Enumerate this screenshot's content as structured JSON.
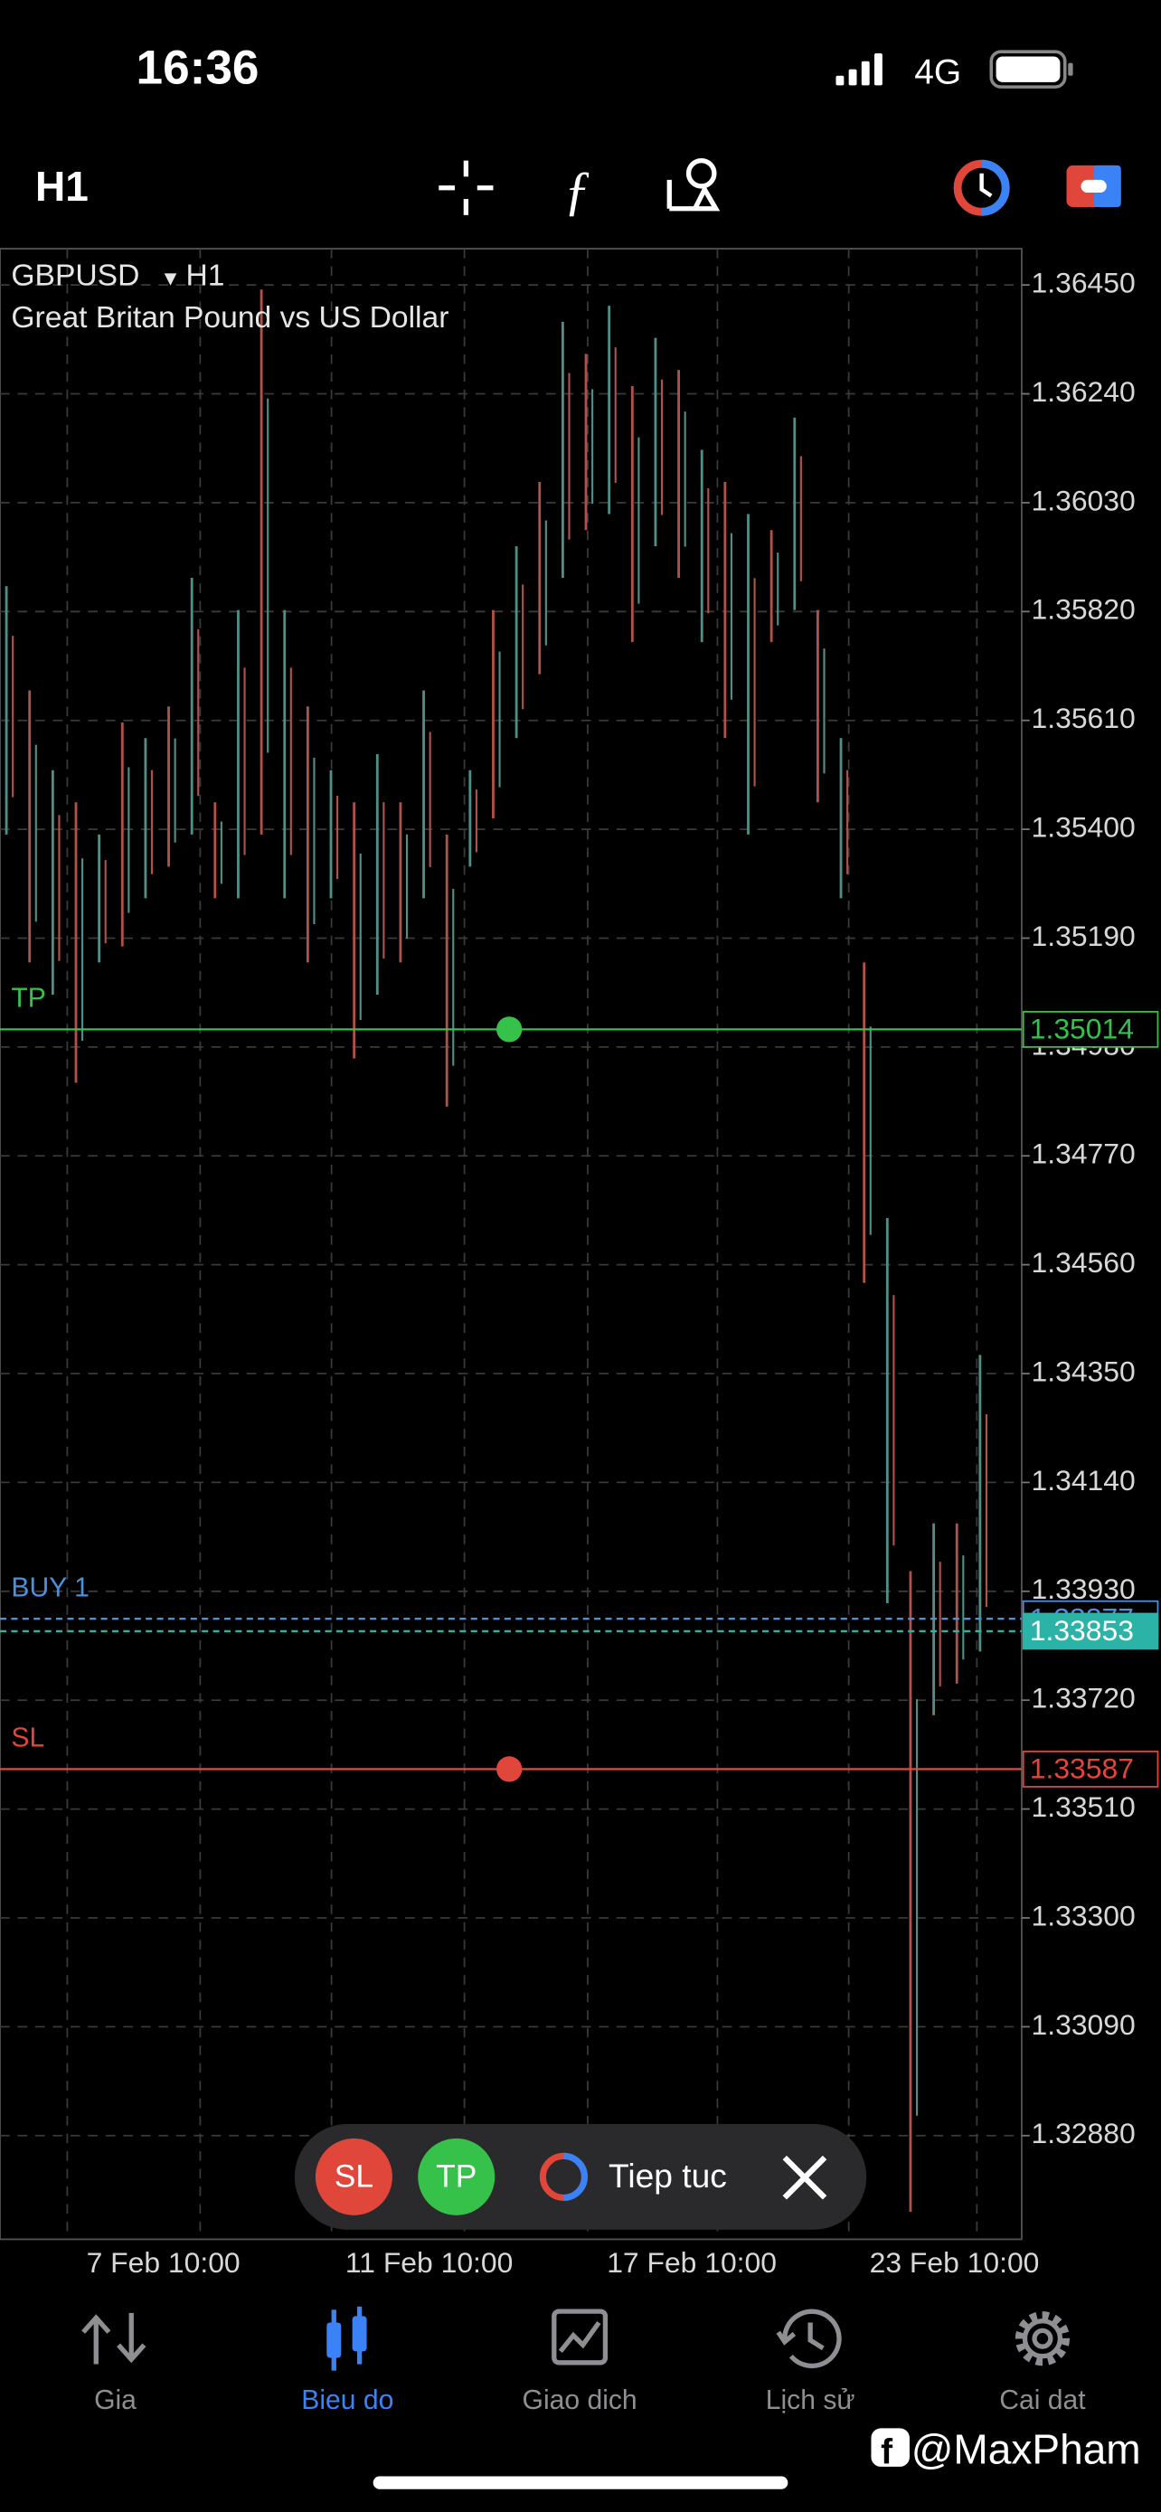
{
  "status_bar": {
    "time": "16:36",
    "network": "4G"
  },
  "toolbar": {
    "timeframe": "H1"
  },
  "chart": {
    "type": "candlestick",
    "symbol": "GBPUSD",
    "timeframe": "H1",
    "description": "Great Britan Pound vs US Dollar",
    "ylim": [
      1.3268,
      1.3652
    ],
    "yticks": [
      {
        "value": 1.3645,
        "label": "1.36450"
      },
      {
        "value": 1.3624,
        "label": "1.36240"
      },
      {
        "value": 1.3603,
        "label": "1.36030"
      },
      {
        "value": 1.3582,
        "label": "1.35820"
      },
      {
        "value": 1.3561,
        "label": "1.35610"
      },
      {
        "value": 1.354,
        "label": "1.35400"
      },
      {
        "value": 1.3519,
        "label": "1.35190"
      },
      {
        "value": 1.3498,
        "label": "1.34980"
      },
      {
        "value": 1.3477,
        "label": "1.34770"
      },
      {
        "value": 1.3456,
        "label": "1.34560"
      },
      {
        "value": 1.3435,
        "label": "1.34350"
      },
      {
        "value": 1.3414,
        "label": "1.34140"
      },
      {
        "value": 1.3393,
        "label": "1.33930"
      },
      {
        "value": 1.3372,
        "label": "1.33720"
      },
      {
        "value": 1.3351,
        "label": "1.33510"
      },
      {
        "value": 1.333,
        "label": "1.33300"
      },
      {
        "value": 1.3309,
        "label": "1.33090"
      },
      {
        "value": 1.3288,
        "label": "1.32880"
      }
    ],
    "x_labels": [
      "7 Feb 10:00",
      "11 Feb 10:00",
      "17 Feb 10:00",
      "23 Feb 10:00"
    ],
    "grid": true,
    "highs": [
      1.35869,
      1.35668,
      1.35514,
      1.35452,
      1.3539,
      1.35606,
      1.35576,
      1.35637,
      1.35885,
      1.35452,
      1.35823,
      1.36441,
      1.35823,
      1.35637,
      1.35514,
      1.35452,
      1.35545,
      1.35452,
      1.35668,
      1.3539,
      1.35514,
      1.35823,
      1.35946,
      1.3607,
      1.36379,
      1.36317,
      1.3641,
      1.36255,
      1.36348,
      1.36286,
      1.36132,
      1.3607,
      1.36008,
      1.35977,
      1.36194,
      1.35823,
      1.35576,
      1.35143,
      1.3465,
      1.33969,
      1.34061,
      1.34061,
      1.34386
    ],
    "lows": [
      1.3539,
      1.35143,
      1.35081,
      1.34911,
      1.35143,
      1.35174,
      1.35267,
      1.35328,
      1.3539,
      1.35267,
      1.35267,
      1.3539,
      1.35267,
      1.35143,
      1.35267,
      1.34958,
      1.35081,
      1.35143,
      1.35267,
      1.34865,
      1.35328,
      1.35421,
      1.35576,
      1.35699,
      1.35885,
      1.35977,
      1.36008,
      1.35761,
      1.35946,
      1.35885,
      1.35761,
      1.35576,
      1.3539,
      1.35761,
      1.35823,
      1.35452,
      1.35267,
      1.34525,
      1.33907,
      1.32733,
      1.33691,
      1.33752,
      1.33814
    ],
    "levels": [
      {
        "name": "TP",
        "price": 1.35014,
        "color": "#35c14a"
      },
      {
        "name": "BUY 1",
        "price": 1.33877,
        "color": "#4a8fe0"
      },
      {
        "price": 1.33853,
        "color": "#2bb3a8"
      },
      {
        "name": "SL",
        "price": 1.33587,
        "color": "#e0463a"
      }
    ]
  },
  "order_bar": {
    "sl": "SL",
    "tp": "TP",
    "continue": "Tiep tuc"
  },
  "tabs": [
    "Gia",
    "Bieu do",
    "Giao dich",
    "Lịch sử",
    "Cai dat"
  ],
  "watermark": "@MaxPham"
}
